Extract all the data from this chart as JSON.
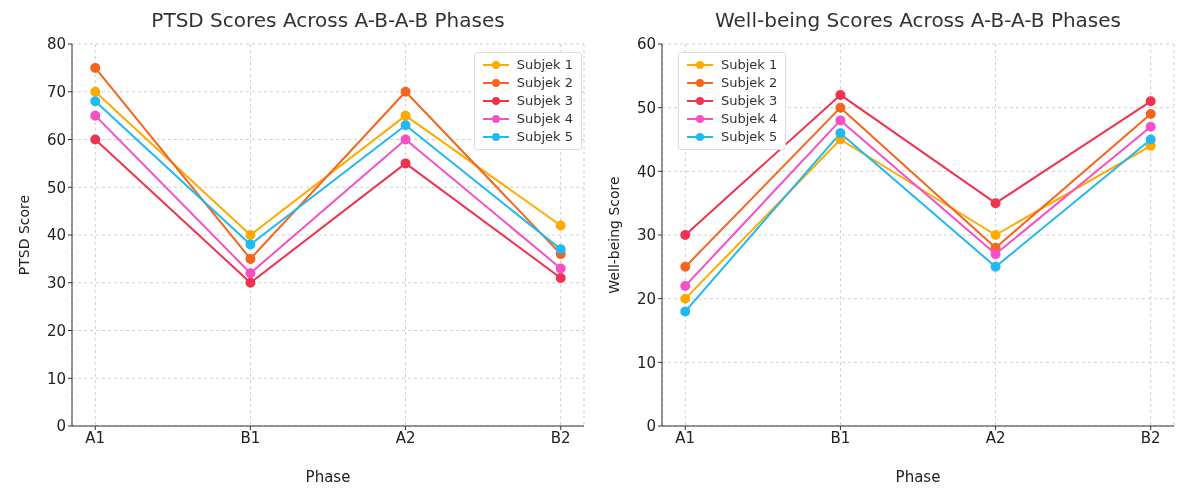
{
  "chart_data": [
    {
      "type": "line",
      "title": "PTSD Scores Across A-B-A-B Phases",
      "xlabel": "Phase",
      "ylabel": "PTSD Score",
      "categories": [
        "A1",
        "B1",
        "A2",
        "B2"
      ],
      "ylim": [
        0,
        80
      ],
      "yticks": [
        0,
        10,
        20,
        30,
        40,
        50,
        60,
        70,
        80
      ],
      "grid": true,
      "legend": "top right",
      "marker": "circle",
      "line_style": "solid",
      "series": [
        {
          "name": "Subjek 1",
          "color": "#ffaa00",
          "values": [
            70,
            40,
            65,
            42
          ]
        },
        {
          "name": "Subjek 2",
          "color": "#f5651e",
          "values": [
            75,
            35,
            70,
            36
          ]
        },
        {
          "name": "Subjek 3",
          "color": "#f0334f",
          "values": [
            60,
            30,
            55,
            31
          ]
        },
        {
          "name": "Subjek 4",
          "color": "#f550c4",
          "values": [
            65,
            32,
            60,
            33
          ]
        },
        {
          "name": "Subjek 5",
          "color": "#22b8f0",
          "values": [
            68,
            38,
            63,
            37
          ]
        }
      ]
    },
    {
      "type": "line",
      "title": "Well-being Scores Across A-B-A-B Phases",
      "xlabel": "Phase",
      "ylabel": "Well-being Score",
      "categories": [
        "A1",
        "B1",
        "A2",
        "B2"
      ],
      "ylim": [
        0,
        60
      ],
      "yticks": [
        0,
        10,
        20,
        30,
        40,
        50,
        60
      ],
      "grid": true,
      "legend": "top left",
      "marker": "circle",
      "line_style": "solid",
      "series": [
        {
          "name": "Subjek 1",
          "color": "#ffaa00",
          "values": [
            20,
            45,
            30,
            44
          ]
        },
        {
          "name": "Subjek 2",
          "color": "#f5651e",
          "values": [
            25,
            50,
            28,
            49
          ]
        },
        {
          "name": "Subjek 3",
          "color": "#f0334f",
          "values": [
            30,
            52,
            35,
            51
          ]
        },
        {
          "name": "Subjek 4",
          "color": "#f550c4",
          "values": [
            22,
            48,
            27,
            47
          ]
        },
        {
          "name": "Subjek 5",
          "color": "#22b8f0",
          "values": [
            18,
            46,
            25,
            45
          ]
        }
      ]
    }
  ]
}
